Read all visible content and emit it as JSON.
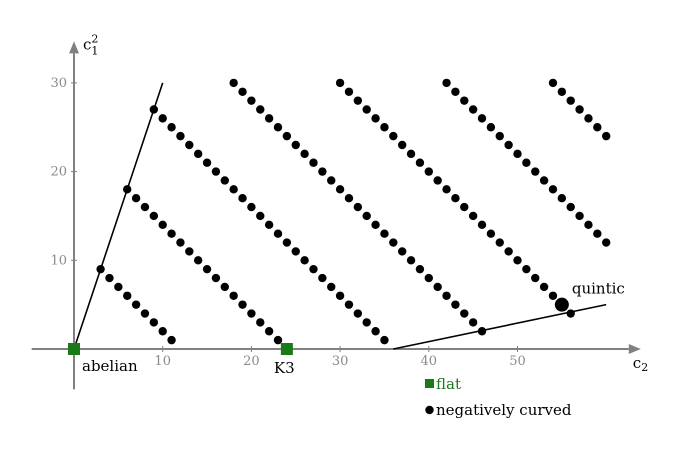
{
  "chart_data": {
    "type": "scatter",
    "title": "",
    "xlabel": "c",
    "xlabel_sub": "2",
    "ylabel": "c",
    "ylabel_sup": "2",
    "ylabel_sub": "1",
    "xlim": [
      -5,
      63
    ],
    "ylim": [
      -5,
      34
    ],
    "x_ticks": [
      10,
      20,
      30,
      40,
      50
    ],
    "y_ticks": [
      10,
      20,
      30
    ],
    "grid": false,
    "legend_position": "bottom-center",
    "colors": {
      "axis": "#808080",
      "flat": "#1a7a1a",
      "curved": "#000000",
      "line": "#000000"
    },
    "series": [
      {
        "name": "flat",
        "marker": "square",
        "points": [
          [
            0,
            0
          ],
          [
            24,
            0
          ]
        ]
      },
      {
        "name": "negatively curved",
        "marker": "circle",
        "diagonals": [
          {
            "from": [
              3,
              9
            ],
            "to": [
              11,
              1
            ]
          },
          {
            "from": [
              6,
              18
            ],
            "to": [
              23,
              1
            ]
          },
          {
            "from": [
              9,
              27
            ],
            "to": [
              35,
              1
            ]
          },
          {
            "from": [
              18,
              30
            ],
            "to": [
              46,
              2
            ]
          },
          {
            "from": [
              30,
              30
            ],
            "to": [
              55,
              5
            ]
          },
          {
            "from": [
              42,
              30
            ],
            "to": [
              60,
              12
            ]
          },
          {
            "from": [
              54,
              30
            ],
            "to": [
              60,
              24
            ]
          }
        ],
        "extra_points": [
          [
            56,
            4
          ]
        ],
        "highlight": {
          "point": [
            55,
            5
          ],
          "label": "quintic"
        }
      }
    ],
    "lines": [
      {
        "from": [
          0,
          0
        ],
        "to": [
          10,
          30
        ]
      },
      {
        "from": [
          36,
          0
        ],
        "to": [
          60,
          5
        ]
      }
    ],
    "annotations": [
      {
        "text": "abelian",
        "at": [
          0,
          0
        ]
      },
      {
        "text": "K3",
        "at": [
          24,
          0
        ]
      },
      {
        "text": "quintic",
        "at": [
          55,
          5
        ]
      }
    ],
    "legend": [
      {
        "label": "flat",
        "marker": "square"
      },
      {
        "label": "negatively curved",
        "marker": "circle"
      }
    ]
  }
}
